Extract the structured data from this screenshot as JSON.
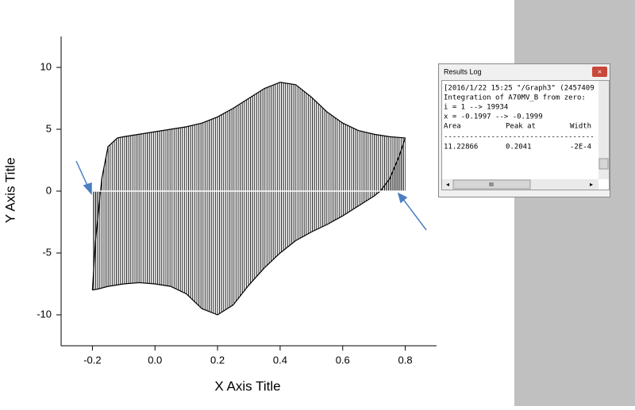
{
  "chart_data": {
    "type": "line",
    "xlabel": "X Axis Title",
    "ylabel": "Y Axis Title",
    "series": [
      {
        "color": "#000000",
        "x": [
          -0.2,
          -0.19,
          -0.17,
          -0.15,
          -0.12,
          -0.1,
          -0.05,
          0.0,
          0.05,
          0.1,
          0.15,
          0.2,
          0.25,
          0.3,
          0.35,
          0.4,
          0.45,
          0.5,
          0.55,
          0.6,
          0.65,
          0.7,
          0.75,
          0.8
        ],
        "values": [
          -8,
          -4,
          1,
          3.6,
          4.3,
          4.4,
          4.6,
          4.8,
          5.0,
          5.2,
          5.5,
          6.0,
          6.7,
          7.5,
          8.3,
          8.8,
          8.6,
          7.6,
          6.4,
          5.5,
          4.9,
          4.6,
          4.4,
          4.3
        ]
      },
      {
        "color": "#000000",
        "x": [
          0.8,
          0.78,
          0.75,
          0.72,
          0.7,
          0.65,
          0.6,
          0.55,
          0.5,
          0.45,
          0.4,
          0.35,
          0.3,
          0.25,
          0.2,
          0.15,
          0.1,
          0.05,
          0.0,
          -0.05,
          -0.1,
          -0.15,
          -0.18,
          -0.2
        ],
        "values": [
          4.3,
          2.8,
          1.0,
          0.0,
          -0.4,
          -1.2,
          -2.0,
          -2.7,
          -3.3,
          -4.0,
          -5.0,
          -6.2,
          -7.6,
          -9.2,
          -10.0,
          -9.5,
          -8.3,
          -7.7,
          -7.5,
          -7.4,
          -7.5,
          -7.7,
          -7.9,
          -8.0
        ]
      }
    ],
    "xlim": [
      -0.3,
      0.9
    ],
    "ylim": [
      -12.5,
      12.5
    ],
    "xticks": [
      -0.2,
      {
        "value": 0,
        "label": "0.0"
      },
      0.2,
      0.4,
      0.6,
      0.8
    ],
    "yticks": [
      -10,
      -5,
      0,
      5,
      10
    ]
  },
  "results_log": {
    "title": "Results Log",
    "lines": [
      "[2016/1/22 15:25 \"/Graph3\" (2457409",
      "Integration of A70MV_B from zero:",
      "i = 1 --> 19934",
      "x = -0.1997 --> -0.1999"
    ],
    "table_header": [
      "Area",
      "Peak at",
      "Width"
    ],
    "separator": "-----------------------------------",
    "table_row": [
      "11.22866",
      "0.2041",
      "-2E-4"
    ],
    "scroll_thumb": "III"
  }
}
